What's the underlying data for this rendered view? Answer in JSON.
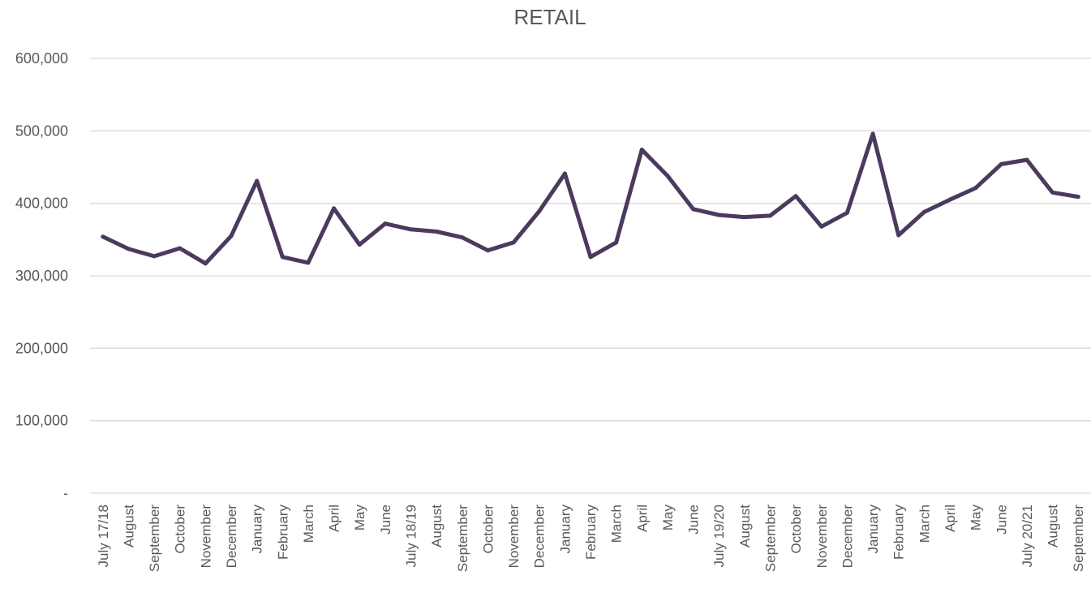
{
  "chart_data": {
    "type": "line",
    "title": "RETAIL",
    "xlabel": "",
    "ylabel": "",
    "ylim": [
      0,
      600000
    ],
    "yticks": [
      0,
      100000,
      200000,
      300000,
      400000,
      500000,
      600000
    ],
    "ytick_labels": [
      "-",
      "100,000",
      "200,000",
      "300,000",
      "400,000",
      "500,000",
      "600,000"
    ],
    "grid": true,
    "legend": "none",
    "categories": [
      "July 17/18",
      "August",
      "September",
      "October",
      "November",
      "December",
      "January",
      "February",
      "March",
      "April",
      "May",
      "June",
      "July 18/19",
      "August",
      "September",
      "October",
      "November",
      "December",
      "January",
      "February",
      "March",
      "April",
      "May",
      "June",
      "July 19/20",
      "August",
      "September",
      "October",
      "November",
      "December",
      "January",
      "February",
      "March",
      "April",
      "May",
      "June",
      "July 20/21",
      "August",
      "September"
    ],
    "series": [
      {
        "color": "#4b3a5e",
        "values": [
          354000,
          337000,
          327000,
          338000,
          317000,
          355000,
          431000,
          326000,
          318000,
          393000,
          343000,
          372000,
          364000,
          361000,
          353000,
          335000,
          346000,
          389000,
          441000,
          326000,
          346000,
          474000,
          438000,
          392000,
          384000,
          381000,
          383000,
          410000,
          368000,
          387000,
          496000,
          356000,
          388000,
          405000,
          421000,
          454000,
          460000,
          415000,
          409000
        ]
      }
    ]
  }
}
